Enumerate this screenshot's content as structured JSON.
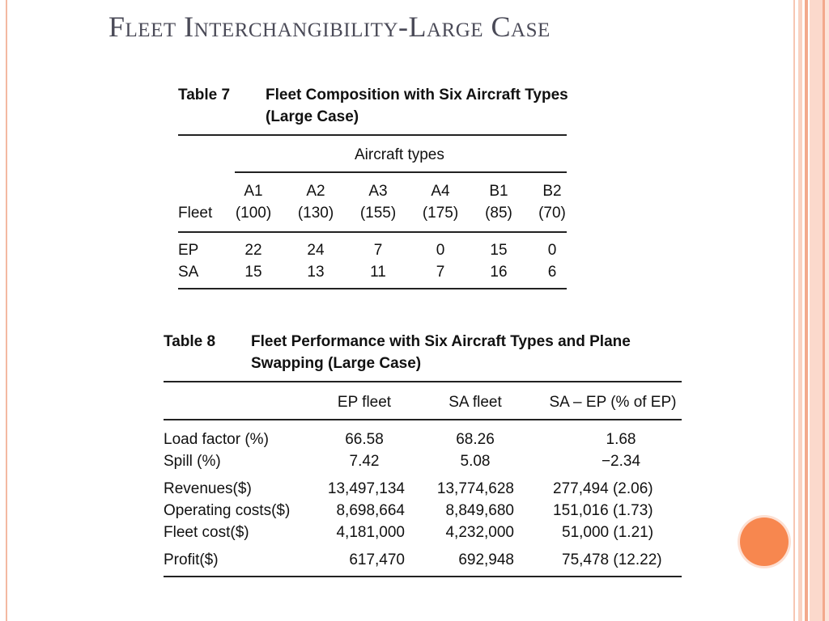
{
  "slide_title": "Fleet Interchangibility-Large Case",
  "table7": {
    "label": "Table 7",
    "caption_line1": "Fleet Composition with Six Aircraft Types",
    "caption_line2": "(Large Case)",
    "group_header": "Aircraft types",
    "row_header": "Fleet",
    "columns": [
      {
        "name": "A1",
        "capacity": "(100)"
      },
      {
        "name": "A2",
        "capacity": "(130)"
      },
      {
        "name": "A3",
        "capacity": "(155)"
      },
      {
        "name": "A4",
        "capacity": "(175)"
      },
      {
        "name": "B1",
        "capacity": "(85)"
      },
      {
        "name": "B2",
        "capacity": "(70)"
      }
    ],
    "rows": [
      {
        "fleet": "EP",
        "values": [
          "22",
          "24",
          "7",
          "0",
          "15",
          "0"
        ]
      },
      {
        "fleet": "SA",
        "values": [
          "15",
          "13",
          "11",
          "7",
          "16",
          "6"
        ]
      }
    ]
  },
  "table8": {
    "label": "Table 8",
    "caption_line1": "Fleet Performance with Six Aircraft Types and Plane",
    "caption_line2": "Swapping (Large Case)",
    "headers": [
      "EP fleet",
      "SA fleet",
      "SA – EP (% of EP)"
    ],
    "rows": [
      {
        "metric": "Load factor (%)",
        "ep": "66.58",
        "sa": "68.26",
        "diff": "1.68"
      },
      {
        "metric": "Spill (%)",
        "ep": "7.42",
        "sa": "5.08",
        "diff": "−2.34"
      },
      {
        "metric": "Revenues($)",
        "ep": "13,497,134",
        "sa": "13,774,628",
        "diff": "277,494 (2.06)"
      },
      {
        "metric": "Operating costs($)",
        "ep": "8,698,664",
        "sa": "8,849,680",
        "diff": "151,016 (1.73)"
      },
      {
        "metric": "Fleet cost($)",
        "ep": "4,181,000",
        "sa": "4,232,000",
        "diff": "51,000 (1.21)"
      },
      {
        "metric": "Profit($)",
        "ep": "617,470",
        "sa": "692,948",
        "diff": "75,478 (12.22)"
      }
    ]
  },
  "colors": {
    "accent": "#f7874f",
    "title": "#4a4a57"
  }
}
